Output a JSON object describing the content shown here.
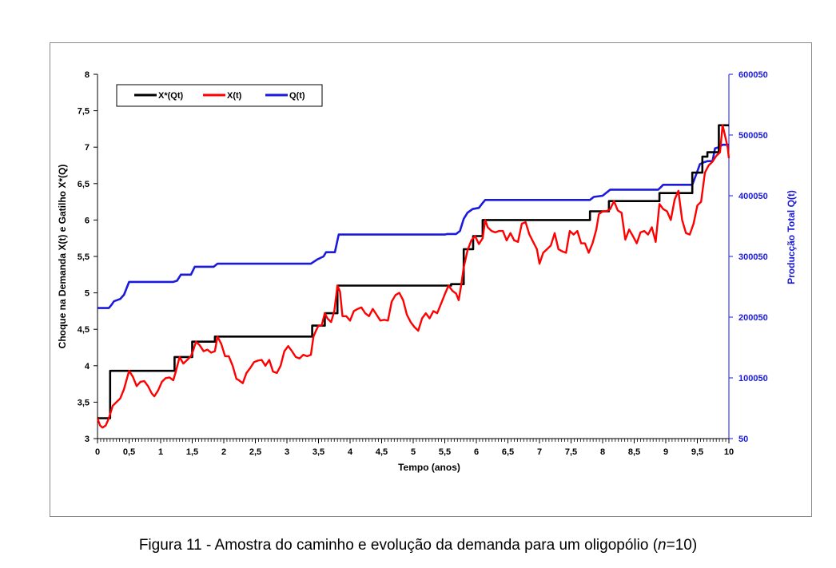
{
  "caption": {
    "prefix": "Figura 11 - Amostra do caminho e evolução da demanda para um oligopólio (",
    "italic": "n",
    "suffix": "=10)"
  },
  "colors": {
    "x_star": "#000000",
    "x_t": "#ff0000",
    "q_t": "#1a1adc",
    "right_axis_text": "#1a1adc",
    "frame": "#8a8a8a"
  },
  "chart_data": {
    "type": "line",
    "title": "",
    "xlabel": "Tempo (anos)",
    "ylabel": "Choque na Demanda X(t)  e Gatilho  X*(Q)",
    "ylabel_right": "Producção Total Q(t)",
    "xlim": [
      0,
      10
    ],
    "ylim": [
      3,
      8
    ],
    "ylim_right": [
      50,
      600050
    ],
    "x_ticks": [
      "0",
      "0,5",
      "1",
      "1,5",
      "2",
      "2,5",
      "3",
      "3,5",
      "4",
      "4,5",
      "5",
      "5,5",
      "6",
      "6,5",
      "7",
      "7,5",
      "8",
      "8,5",
      "9",
      "9,5",
      "10"
    ],
    "y_ticks": [
      "3",
      "3,5",
      "4",
      "4,5",
      "5",
      "5,5",
      "6",
      "6,5",
      "7",
      "7,5",
      "8"
    ],
    "y_ticks_right": [
      "50",
      "100050",
      "200050",
      "300050",
      "400050",
      "500050",
      "600050"
    ],
    "grid": false,
    "legend_position": "top-left",
    "series": [
      {
        "name": "X*(Qt)",
        "axis": "left",
        "points": [
          [
            0,
            3.28
          ],
          [
            0.2,
            3.28
          ],
          [
            0.2,
            3.93
          ],
          [
            1.22,
            3.93
          ],
          [
            1.22,
            4.12
          ],
          [
            1.5,
            4.12
          ],
          [
            1.5,
            4.33
          ],
          [
            1.86,
            4.33
          ],
          [
            1.86,
            4.4
          ],
          [
            3.4,
            4.4
          ],
          [
            3.4,
            4.55
          ],
          [
            3.6,
            4.55
          ],
          [
            3.6,
            4.72
          ],
          [
            3.8,
            4.72
          ],
          [
            3.8,
            5.1
          ],
          [
            5.6,
            5.1
          ],
          [
            5.6,
            5.12
          ],
          [
            5.8,
            5.12
          ],
          [
            5.8,
            5.6
          ],
          [
            5.95,
            5.6
          ],
          [
            5.95,
            5.78
          ],
          [
            6.1,
            5.78
          ],
          [
            6.1,
            6.0
          ],
          [
            7.8,
            6.0
          ],
          [
            7.8,
            6.12
          ],
          [
            8.1,
            6.12
          ],
          [
            8.1,
            6.26
          ],
          [
            8.9,
            6.26
          ],
          [
            8.9,
            6.37
          ],
          [
            9.42,
            6.37
          ],
          [
            9.42,
            6.65
          ],
          [
            9.58,
            6.65
          ],
          [
            9.58,
            6.87
          ],
          [
            9.66,
            6.87
          ],
          [
            9.66,
            6.93
          ],
          [
            9.84,
            6.93
          ],
          [
            9.84,
            7.3
          ],
          [
            10,
            7.3
          ]
        ]
      },
      {
        "name": "X(t)",
        "axis": "left",
        "points": [
          [
            0,
            3.28
          ],
          [
            0.04,
            3.18
          ],
          [
            0.08,
            3.15
          ],
          [
            0.13,
            3.18
          ],
          [
            0.18,
            3.28
          ],
          [
            0.24,
            3.45
          ],
          [
            0.3,
            3.5
          ],
          [
            0.36,
            3.55
          ],
          [
            0.42,
            3.68
          ],
          [
            0.5,
            3.93
          ],
          [
            0.56,
            3.85
          ],
          [
            0.62,
            3.72
          ],
          [
            0.68,
            3.78
          ],
          [
            0.74,
            3.79
          ],
          [
            0.8,
            3.72
          ],
          [
            0.86,
            3.62
          ],
          [
            0.9,
            3.58
          ],
          [
            0.96,
            3.66
          ],
          [
            1.02,
            3.78
          ],
          [
            1.08,
            3.83
          ],
          [
            1.14,
            3.84
          ],
          [
            1.2,
            3.8
          ],
          [
            1.24,
            3.92
          ],
          [
            1.3,
            4.12
          ],
          [
            1.36,
            4.03
          ],
          [
            1.42,
            4.08
          ],
          [
            1.48,
            4.13
          ],
          [
            1.52,
            4.22
          ],
          [
            1.56,
            4.33
          ],
          [
            1.62,
            4.28
          ],
          [
            1.68,
            4.2
          ],
          [
            1.74,
            4.22
          ],
          [
            1.8,
            4.18
          ],
          [
            1.86,
            4.2
          ],
          [
            1.9,
            4.4
          ],
          [
            1.96,
            4.3
          ],
          [
            2.02,
            4.13
          ],
          [
            2.08,
            4.13
          ],
          [
            2.14,
            4.0
          ],
          [
            2.2,
            3.82
          ],
          [
            2.24,
            3.8
          ],
          [
            2.3,
            3.76
          ],
          [
            2.36,
            3.9
          ],
          [
            2.42,
            3.97
          ],
          [
            2.48,
            4.05
          ],
          [
            2.54,
            4.07
          ],
          [
            2.6,
            4.08
          ],
          [
            2.66,
            4.0
          ],
          [
            2.72,
            4.08
          ],
          [
            2.78,
            3.92
          ],
          [
            2.84,
            3.9
          ],
          [
            2.9,
            4.0
          ],
          [
            2.96,
            4.2
          ],
          [
            3.02,
            4.27
          ],
          [
            3.08,
            4.2
          ],
          [
            3.14,
            4.12
          ],
          [
            3.2,
            4.1
          ],
          [
            3.26,
            4.15
          ],
          [
            3.32,
            4.13
          ],
          [
            3.38,
            4.15
          ],
          [
            3.42,
            4.4
          ],
          [
            3.46,
            4.48
          ],
          [
            3.5,
            4.55
          ],
          [
            3.55,
            4.55
          ],
          [
            3.6,
            4.72
          ],
          [
            3.64,
            4.65
          ],
          [
            3.7,
            4.6
          ],
          [
            3.75,
            4.75
          ],
          [
            3.8,
            5.1
          ],
          [
            3.84,
            5.02
          ],
          [
            3.88,
            4.68
          ],
          [
            3.94,
            4.68
          ],
          [
            4.0,
            4.62
          ],
          [
            4.06,
            4.75
          ],
          [
            4.12,
            4.78
          ],
          [
            4.18,
            4.8
          ],
          [
            4.24,
            4.72
          ],
          [
            4.3,
            4.68
          ],
          [
            4.36,
            4.78
          ],
          [
            4.42,
            4.7
          ],
          [
            4.48,
            4.62
          ],
          [
            4.54,
            4.63
          ],
          [
            4.6,
            4.62
          ],
          [
            4.66,
            4.88
          ],
          [
            4.72,
            4.97
          ],
          [
            4.78,
            5.0
          ],
          [
            4.84,
            4.9
          ],
          [
            4.9,
            4.7
          ],
          [
            4.96,
            4.6
          ],
          [
            5.02,
            4.53
          ],
          [
            5.08,
            4.48
          ],
          [
            5.14,
            4.65
          ],
          [
            5.2,
            4.72
          ],
          [
            5.26,
            4.65
          ],
          [
            5.32,
            4.75
          ],
          [
            5.38,
            4.72
          ],
          [
            5.44,
            4.85
          ],
          [
            5.5,
            4.98
          ],
          [
            5.56,
            5.1
          ],
          [
            5.62,
            5.03
          ],
          [
            5.68,
            4.99
          ],
          [
            5.72,
            4.9
          ],
          [
            5.76,
            5.1
          ],
          [
            5.8,
            5.35
          ],
          [
            5.86,
            5.58
          ],
          [
            5.92,
            5.72
          ],
          [
            5.98,
            5.78
          ],
          [
            6.04,
            5.67
          ],
          [
            6.1,
            5.75
          ],
          [
            6.14,
            6.0
          ],
          [
            6.18,
            5.9
          ],
          [
            6.24,
            5.85
          ],
          [
            6.3,
            5.83
          ],
          [
            6.36,
            5.85
          ],
          [
            6.42,
            5.85
          ],
          [
            6.48,
            5.72
          ],
          [
            6.54,
            5.82
          ],
          [
            6.6,
            5.72
          ],
          [
            6.66,
            5.7
          ],
          [
            6.72,
            5.95
          ],
          [
            6.78,
            5.97
          ],
          [
            6.84,
            5.8
          ],
          [
            6.9,
            5.7
          ],
          [
            6.96,
            5.6
          ],
          [
            7.0,
            5.4
          ],
          [
            7.06,
            5.55
          ],
          [
            7.12,
            5.6
          ],
          [
            7.18,
            5.65
          ],
          [
            7.24,
            5.82
          ],
          [
            7.3,
            5.6
          ],
          [
            7.36,
            5.57
          ],
          [
            7.42,
            5.55
          ],
          [
            7.48,
            5.85
          ],
          [
            7.54,
            5.8
          ],
          [
            7.6,
            5.85
          ],
          [
            7.66,
            5.68
          ],
          [
            7.72,
            5.68
          ],
          [
            7.78,
            5.55
          ],
          [
            7.84,
            5.68
          ],
          [
            7.9,
            5.87
          ],
          [
            7.94,
            6.08
          ],
          [
            8.0,
            6.12
          ],
          [
            8.06,
            6.12
          ],
          [
            8.12,
            6.15
          ],
          [
            8.18,
            6.26
          ],
          [
            8.24,
            6.13
          ],
          [
            8.3,
            6.1
          ],
          [
            8.36,
            5.73
          ],
          [
            8.42,
            5.87
          ],
          [
            8.48,
            5.78
          ],
          [
            8.54,
            5.68
          ],
          [
            8.6,
            5.83
          ],
          [
            8.66,
            5.85
          ],
          [
            8.72,
            5.8
          ],
          [
            8.78,
            5.9
          ],
          [
            8.84,
            5.7
          ],
          [
            8.9,
            6.22
          ],
          [
            8.96,
            6.15
          ],
          [
            9.02,
            6.12
          ],
          [
            9.08,
            6.0
          ],
          [
            9.14,
            6.28
          ],
          [
            9.2,
            6.4
          ],
          [
            9.26,
            6.0
          ],
          [
            9.32,
            5.82
          ],
          [
            9.38,
            5.8
          ],
          [
            9.44,
            5.95
          ],
          [
            9.5,
            6.2
          ],
          [
            9.56,
            6.25
          ],
          [
            9.62,
            6.65
          ],
          [
            9.68,
            6.75
          ],
          [
            9.74,
            6.8
          ],
          [
            9.8,
            6.88
          ],
          [
            9.86,
            6.93
          ],
          [
            9.9,
            7.3
          ],
          [
            9.94,
            7.15
          ],
          [
            9.98,
            7.0
          ],
          [
            10,
            6.85
          ]
        ]
      },
      {
        "name": "Q(t)",
        "axis": "right",
        "points": [
          [
            0,
            215050
          ],
          [
            0.18,
            215050
          ],
          [
            0.22,
            220050
          ],
          [
            0.26,
            226050
          ],
          [
            0.36,
            230050
          ],
          [
            0.42,
            237050
          ],
          [
            0.5,
            258050
          ],
          [
            1.2,
            258050
          ],
          [
            1.26,
            260050
          ],
          [
            1.32,
            270050
          ],
          [
            1.48,
            270050
          ],
          [
            1.54,
            283050
          ],
          [
            1.84,
            283050
          ],
          [
            1.9,
            288050
          ],
          [
            3.38,
            288050
          ],
          [
            3.48,
            295050
          ],
          [
            3.58,
            300050
          ],
          [
            3.62,
            307050
          ],
          [
            3.76,
            307050
          ],
          [
            3.82,
            336050
          ],
          [
            5.5,
            336050
          ],
          [
            5.54,
            337050
          ],
          [
            5.68,
            337050
          ],
          [
            5.74,
            342050
          ],
          [
            5.8,
            362050
          ],
          [
            5.86,
            372050
          ],
          [
            5.94,
            378050
          ],
          [
            6.04,
            380050
          ],
          [
            6.1,
            388050
          ],
          [
            6.14,
            393050
          ],
          [
            7.8,
            393050
          ],
          [
            7.86,
            398050
          ],
          [
            8.0,
            400050
          ],
          [
            8.06,
            405050
          ],
          [
            8.12,
            410050
          ],
          [
            8.88,
            410050
          ],
          [
            8.92,
            414050
          ],
          [
            8.96,
            418050
          ],
          [
            9.42,
            418050
          ],
          [
            9.5,
            440050
          ],
          [
            9.54,
            452050
          ],
          [
            9.6,
            455050
          ],
          [
            9.66,
            457050
          ],
          [
            9.74,
            457050
          ],
          [
            9.78,
            478050
          ],
          [
            9.84,
            480050
          ],
          [
            9.9,
            484050
          ],
          [
            10,
            484050
          ]
        ]
      }
    ]
  }
}
